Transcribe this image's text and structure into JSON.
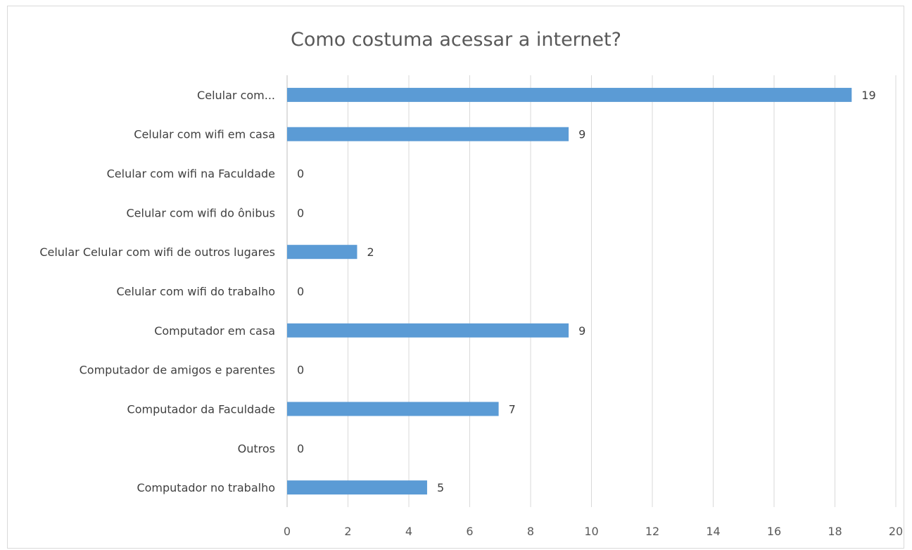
{
  "chart_data": {
    "type": "bar",
    "orientation": "horizontal",
    "title": "Como costuma acessar a internet?",
    "xlabel": "",
    "ylabel": "",
    "categories": [
      "Celular com...",
      "Celular com wifi em casa",
      "Celular com wifi na Faculdade",
      "Celular com wifi do ônibus",
      "Celular Celular com wifi de outros lugares",
      "Celular com wifi do trabalho",
      "Computador em casa",
      "Computador de amigos e parentes",
      "Computador da Faculdade",
      "Outros",
      "Computador no trabalho"
    ],
    "values": [
      19,
      9,
      0,
      0,
      2,
      0,
      9,
      0,
      7,
      0,
      5
    ],
    "data_labels": [
      "19",
      "9",
      "0",
      "0",
      "2",
      "0",
      "9",
      "0",
      "7",
      "0",
      "5"
    ],
    "bar_lengths_as_drawn": [
      18.55,
      9.25,
      0,
      0,
      2.3,
      0,
      9.25,
      0,
      6.95,
      0,
      4.6
    ],
    "xlim": [
      0,
      20
    ],
    "x_ticks": [
      "0",
      "2",
      "4",
      "6",
      "8",
      "10",
      "12",
      "14",
      "16",
      "18",
      "20"
    ],
    "grid": "vertical",
    "legend": "none",
    "bar_color": "#5b9bd5"
  }
}
